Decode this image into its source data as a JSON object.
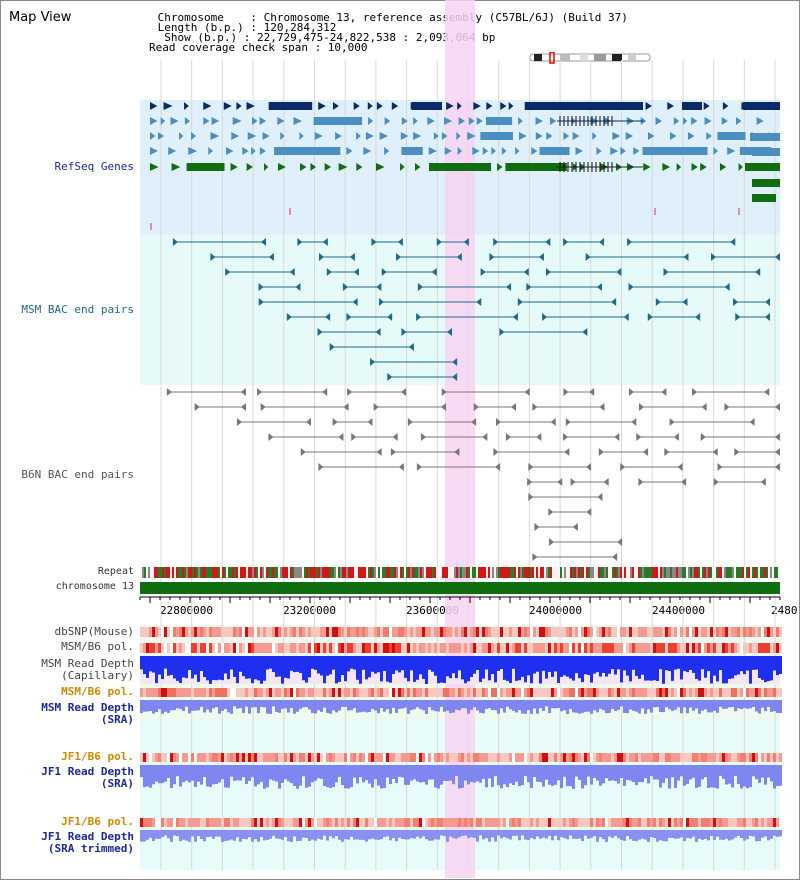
{
  "header": {
    "title": "Map View",
    "chromosome_line": " Chromosome    : Chromosome 13, reference assembly (C57BL/6J) (Build 37)",
    "length_line": " Length (b.p.) : 120,284,312",
    "show_line": "  Show (b.p.) : 22,729,475-24,822,538 : 2,093,064 bp",
    "coverage_line": "Read coverage check span : 10,000"
  },
  "tracks": {
    "refseq": "RefSeq Genes",
    "msm_bac": "MSM BAC end pairs",
    "b6n_bac": "B6N BAC end pairs",
    "repeat": "Repeat",
    "chromosome": "chromosome 13",
    "dbsnp": "dbSNP(Mouse)",
    "msm_pol": "MSM/B6 pol.",
    "msm_depth_cap": "MSM Read Depth\n(Capillary)",
    "msm_pol2": "MSM/B6 pol.",
    "msm_depth_sra": "MSM Read Depth\n(SRA)",
    "jf1_pol": "JF1/B6 pol.",
    "jf1_depth_sra": "JF1 Read Depth\n(SRA)",
    "jf1_pol2": "JF1/B6 pol.",
    "jf1_depth_trim": "JF1 Read Depth\n(SRA trimmed)"
  },
  "axis": {
    "ticks": [
      "22800000",
      "23200000",
      "23600000",
      "24000000",
      "24400000",
      "2480"
    ]
  },
  "colors": {
    "refseq_bg": "#dff0fa",
    "msm_bg": "#e6fafa",
    "highlight": "#f7d4f2",
    "gene_dark": "#0b2a66",
    "gene_mid": "#4a8fbf",
    "gene_green": "#0f6e0f",
    "bac_teal": "#1f6a8a",
    "bac_gray": "#777777",
    "chromosome_bar": "#0f6e0f"
  }
}
